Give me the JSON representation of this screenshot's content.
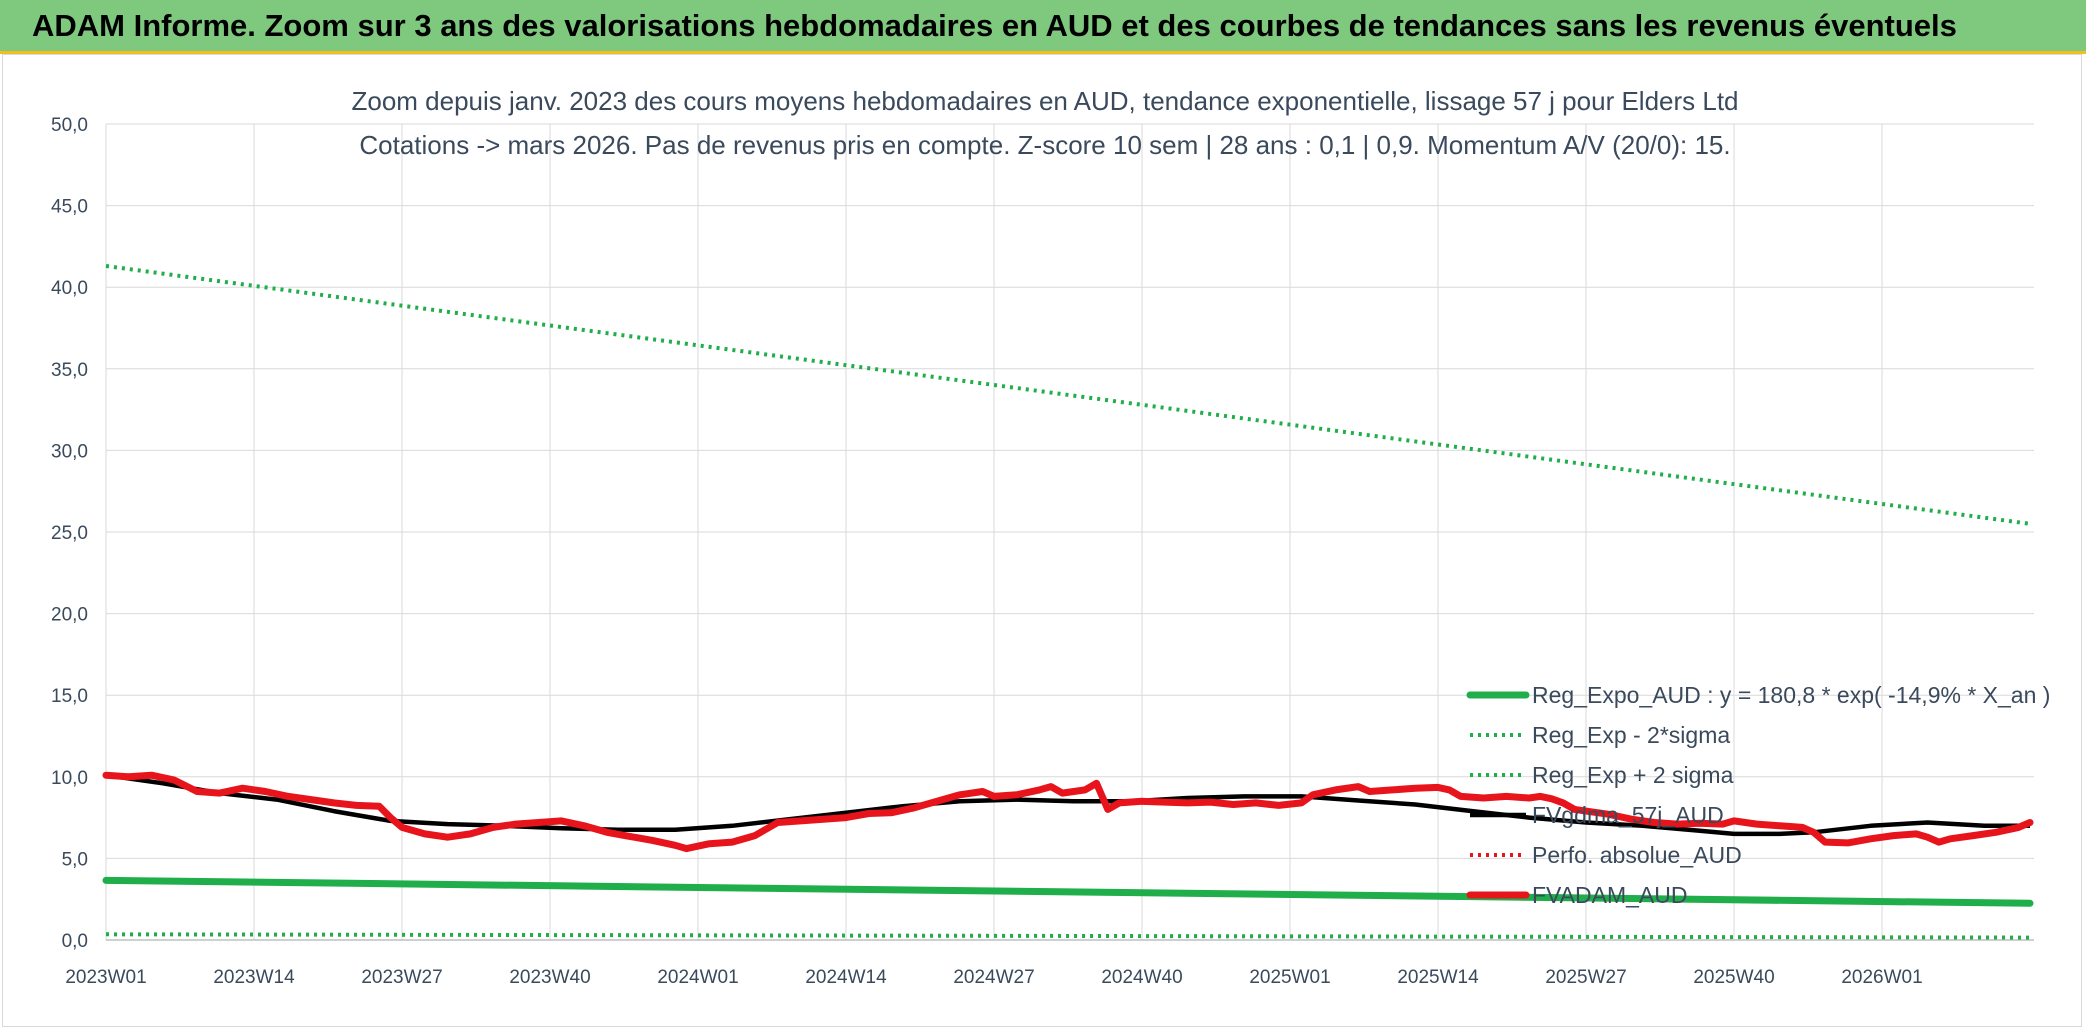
{
  "banner": {
    "title": "ADAM Informe. Zoom sur 3 ans des valorisations hebdomadaires en AUD et des courbes de tendances sans les revenus éventuels"
  },
  "colors": {
    "green": "#1fae4a",
    "red": "#e8141b",
    "black": "#000000",
    "banner": "#7fc97f",
    "grid": "#d9d9d9",
    "text": "#3a4a5c"
  },
  "chart_data": {
    "type": "line",
    "title": [
      "Zoom depuis janv. 2023 des cours moyens hebdomadaires en AUD, tendance exponentielle, lissage 57 j pour Elders Ltd",
      "Cotations -> mars 2026. Pas de revenus pris en compte. Z-score 10 sem | 28 ans : 0,1 | 0,9. Momentum A/V (20/0): 15."
    ],
    "ylim": [
      0,
      50
    ],
    "y_ticks": [
      "0,0",
      "5,0",
      "10,0",
      "15,0",
      "20,0",
      "25,0",
      "30,0",
      "35,0",
      "40,0",
      "45,0",
      "50,0"
    ],
    "x_ticks": [
      "2023W01",
      "2023W14",
      "2023W27",
      "2023W40",
      "2024W01",
      "2024W14",
      "2024W27",
      "2024W40",
      "2025W01",
      "2025W14",
      "2025W27",
      "2025W40",
      "2026W01"
    ],
    "weeks_total": 170,
    "grid": true,
    "legend_position": "bottom-right",
    "series": [
      {
        "name": "Reg_Expo_AUD : y = 180,8 * exp( -14,9% *  X_an )",
        "style": "thick",
        "color": "#1fae4a",
        "points": [
          [
            0,
            3.65
          ],
          [
            169,
            2.25
          ]
        ]
      },
      {
        "name": "Reg_Exp - 2*sigma",
        "style": "dotted",
        "color": "#1fae4a",
        "points": [
          [
            0,
            0.35
          ],
          [
            169,
            0.15
          ]
        ]
      },
      {
        "name": "Reg_Exp + 2 sigma",
        "style": "dotted",
        "color": "#1fae4a",
        "points": [
          [
            0,
            41.3
          ],
          [
            169,
            25.5
          ]
        ]
      },
      {
        "name": "FVgdma_57j_AUD",
        "style": "solid",
        "color": "#000000",
        "points": [
          [
            0,
            10.1
          ],
          [
            5,
            9.6
          ],
          [
            10,
            9.0
          ],
          [
            15,
            8.6
          ],
          [
            20,
            7.9
          ],
          [
            25,
            7.3
          ],
          [
            30,
            7.1
          ],
          [
            35,
            7.0
          ],
          [
            40,
            6.85
          ],
          [
            45,
            6.75
          ],
          [
            50,
            6.75
          ],
          [
            55,
            7.0
          ],
          [
            60,
            7.4
          ],
          [
            65,
            7.8
          ],
          [
            70,
            8.2
          ],
          [
            75,
            8.5
          ],
          [
            80,
            8.6
          ],
          [
            85,
            8.5
          ],
          [
            90,
            8.5
          ],
          [
            95,
            8.7
          ],
          [
            100,
            8.8
          ],
          [
            105,
            8.8
          ],
          [
            110,
            8.55
          ],
          [
            115,
            8.3
          ],
          [
            120,
            7.9
          ],
          [
            125,
            7.5
          ],
          [
            130,
            7.2
          ],
          [
            135,
            7.0
          ],
          [
            140,
            6.7
          ],
          [
            143,
            6.5
          ],
          [
            147,
            6.5
          ],
          [
            150,
            6.6
          ],
          [
            155,
            7.0
          ],
          [
            160,
            7.2
          ],
          [
            165,
            7.0
          ],
          [
            169,
            7.0
          ]
        ]
      },
      {
        "name": "Perfo. absolue_AUD",
        "style": "dotted",
        "color": "#e8141b",
        "points": []
      },
      {
        "name": "FVADAM_AUD",
        "style": "thick",
        "color": "#e8141b",
        "points": [
          [
            0,
            10.1
          ],
          [
            2,
            10.0
          ],
          [
            4,
            10.1
          ],
          [
            6,
            9.8
          ],
          [
            8,
            9.1
          ],
          [
            10,
            9.0
          ],
          [
            12,
            9.3
          ],
          [
            14,
            9.1
          ],
          [
            16,
            8.8
          ],
          [
            18,
            8.6
          ],
          [
            20,
            8.4
          ],
          [
            22,
            8.25
          ],
          [
            24,
            8.2
          ],
          [
            25,
            7.5
          ],
          [
            26,
            6.9
          ],
          [
            28,
            6.5
          ],
          [
            30,
            6.3
          ],
          [
            32,
            6.5
          ],
          [
            34,
            6.9
          ],
          [
            36,
            7.1
          ],
          [
            38,
            7.2
          ],
          [
            40,
            7.3
          ],
          [
            42,
            7.0
          ],
          [
            44,
            6.6
          ],
          [
            46,
            6.35
          ],
          [
            48,
            6.1
          ],
          [
            50,
            5.8
          ],
          [
            51,
            5.6
          ],
          [
            53,
            5.9
          ],
          [
            55,
            6.0
          ],
          [
            57,
            6.4
          ],
          [
            59,
            7.2
          ],
          [
            61,
            7.3
          ],
          [
            63,
            7.4
          ],
          [
            65,
            7.5
          ],
          [
            67,
            7.75
          ],
          [
            69,
            7.8
          ],
          [
            71,
            8.1
          ],
          [
            73,
            8.5
          ],
          [
            75,
            8.9
          ],
          [
            77,
            9.1
          ],
          [
            78,
            8.8
          ],
          [
            80,
            8.9
          ],
          [
            82,
            9.2
          ],
          [
            83,
            9.4
          ],
          [
            84,
            9.0
          ],
          [
            86,
            9.2
          ],
          [
            87,
            9.6
          ],
          [
            88,
            8.0
          ],
          [
            89,
            8.4
          ],
          [
            91,
            8.5
          ],
          [
            93,
            8.45
          ],
          [
            95,
            8.4
          ],
          [
            97,
            8.45
          ],
          [
            99,
            8.3
          ],
          [
            101,
            8.4
          ],
          [
            103,
            8.25
          ],
          [
            105,
            8.4
          ],
          [
            106,
            8.9
          ],
          [
            108,
            9.2
          ],
          [
            110,
            9.4
          ],
          [
            111,
            9.1
          ],
          [
            113,
            9.2
          ],
          [
            115,
            9.3
          ],
          [
            117,
            9.35
          ],
          [
            118,
            9.2
          ],
          [
            119,
            8.8
          ],
          [
            121,
            8.7
          ],
          [
            123,
            8.8
          ],
          [
            125,
            8.7
          ],
          [
            126,
            8.8
          ],
          [
            127,
            8.65
          ],
          [
            128,
            8.4
          ],
          [
            129,
            8.0
          ],
          [
            130,
            7.9
          ],
          [
            132,
            7.7
          ],
          [
            134,
            7.4
          ],
          [
            136,
            7.2
          ],
          [
            138,
            7.1
          ],
          [
            140,
            7.15
          ],
          [
            142,
            7.1
          ],
          [
            143,
            7.3
          ],
          [
            145,
            7.1
          ],
          [
            147,
            7.0
          ],
          [
            149,
            6.9
          ],
          [
            150,
            6.6
          ],
          [
            151,
            6.0
          ],
          [
            153,
            5.95
          ],
          [
            155,
            6.2
          ],
          [
            157,
            6.4
          ],
          [
            159,
            6.5
          ],
          [
            160,
            6.3
          ],
          [
            161,
            6.0
          ],
          [
            162,
            6.2
          ],
          [
            164,
            6.4
          ],
          [
            166,
            6.6
          ],
          [
            168,
            6.9
          ],
          [
            169,
            7.2
          ]
        ]
      }
    ]
  }
}
